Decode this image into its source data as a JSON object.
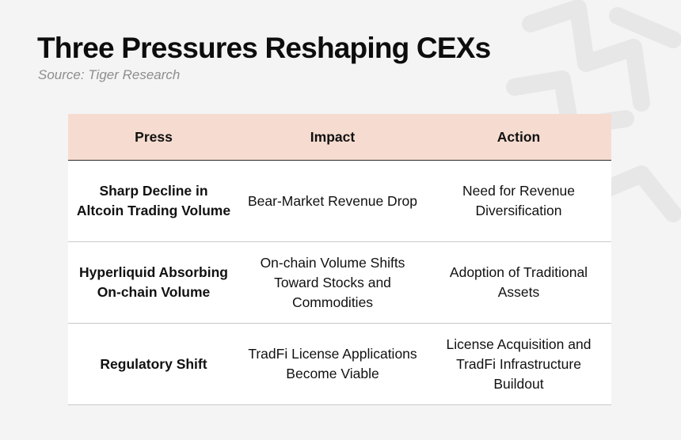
{
  "title": "Three Pressures Reshaping CEXs",
  "source": "Source: Tiger Research",
  "watermark_icon": "tiger-logo-icon",
  "colors": {
    "header_bg": "#f6dcd0",
    "page_bg": "#f4f4f4",
    "row_bg": "#ffffff"
  },
  "table": {
    "headers": [
      "Press",
      "Impact",
      "Action"
    ],
    "rows": [
      {
        "press": "Sharp Decline in Altcoin Trading Volume",
        "impact": "Bear-Market Revenue Drop",
        "action": "Need for Revenue Diversification"
      },
      {
        "press": "Hyperliquid Absorbing On-chain Volume",
        "impact": "On-chain Volume Shifts Toward Stocks and Commodities",
        "action": "Adoption of Traditional Assets"
      },
      {
        "press": "Regulatory Shift",
        "impact": "TradFi License Applications Become Viable",
        "action": "License Acquisition and TradFi Infrastructure Buildout"
      }
    ]
  }
}
